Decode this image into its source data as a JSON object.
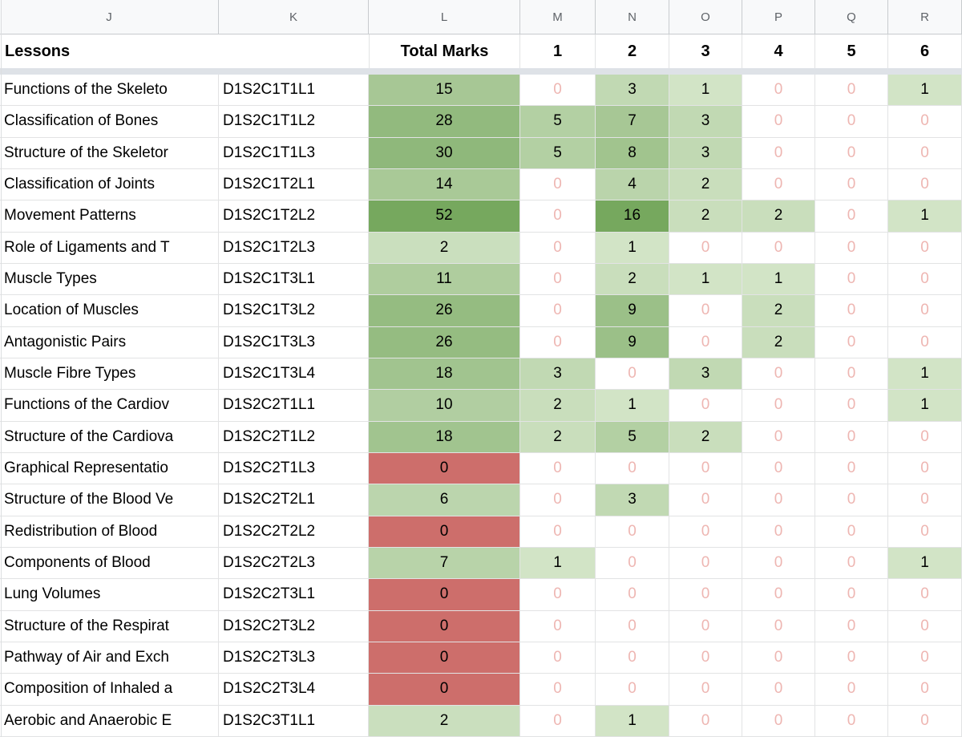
{
  "sheet": {
    "column_letters": [
      "J",
      "K",
      "L",
      "M",
      "N",
      "O",
      "P",
      "Q",
      "R"
    ],
    "header": {
      "lessons_label": "Lessons",
      "total_marks_label": "Total Marks",
      "mark_columns": [
        "1",
        "2",
        "3",
        "4",
        "5",
        "6"
      ]
    },
    "colors": {
      "green_dark": "#76a85e",
      "green_light": "#dfecd5",
      "red_zero_bg": "#cd6e6b",
      "zero_text": "#eeb6b2",
      "grid_line": "#e2e3e4",
      "letters_bg": "#f8f9fa",
      "letters_text": "#5f6368",
      "letters_border": "#c8cbce",
      "divider": "#dee2e7",
      "cell_text": "#000000"
    },
    "rows": [
      {
        "lesson": "Functions of the Skeleto",
        "code": "D1S2C1T1L1",
        "total": 15,
        "marks": [
          0,
          3,
          1,
          0,
          0,
          1
        ]
      },
      {
        "lesson": "Classification of Bones",
        "code": "D1S2C1T1L2",
        "total": 28,
        "marks": [
          5,
          7,
          3,
          0,
          0,
          0
        ]
      },
      {
        "lesson": "Structure of the Skeletor",
        "code": "D1S2C1T1L3",
        "total": 30,
        "marks": [
          5,
          8,
          3,
          0,
          0,
          0
        ]
      },
      {
        "lesson": "Classification of Joints",
        "code": "D1S2C1T2L1",
        "total": 14,
        "marks": [
          0,
          4,
          2,
          0,
          0,
          0
        ]
      },
      {
        "lesson": "Movement Patterns",
        "code": "D1S2C1T2L2",
        "total": 52,
        "marks": [
          0,
          16,
          2,
          2,
          0,
          1
        ]
      },
      {
        "lesson": "Role of Ligaments and T",
        "code": "D1S2C1T2L3",
        "total": 2,
        "marks": [
          0,
          1,
          0,
          0,
          0,
          0
        ]
      },
      {
        "lesson": "Muscle Types",
        "code": "D1S2C1T3L1",
        "total": 11,
        "marks": [
          0,
          2,
          1,
          1,
          0,
          0
        ]
      },
      {
        "lesson": "Location of Muscles",
        "code": "D1S2C1T3L2",
        "total": 26,
        "marks": [
          0,
          9,
          0,
          2,
          0,
          0
        ]
      },
      {
        "lesson": "Antagonistic Pairs",
        "code": "D1S2C1T3L3",
        "total": 26,
        "marks": [
          0,
          9,
          0,
          2,
          0,
          0
        ]
      },
      {
        "lesson": "Muscle Fibre Types",
        "code": "D1S2C1T3L4",
        "total": 18,
        "marks": [
          3,
          0,
          3,
          0,
          0,
          1
        ]
      },
      {
        "lesson": "Functions of the Cardiov",
        "code": "D1S2C2T1L1",
        "total": 10,
        "marks": [
          2,
          1,
          0,
          0,
          0,
          1
        ]
      },
      {
        "lesson": "Structure of the Cardiova",
        "code": "D1S2C2T1L2",
        "total": 18,
        "marks": [
          2,
          5,
          2,
          0,
          0,
          0
        ]
      },
      {
        "lesson": "Graphical Representatio",
        "code": "D1S2C2T1L3",
        "total": 0,
        "marks": [
          0,
          0,
          0,
          0,
          0,
          0
        ]
      },
      {
        "lesson": "Structure of the Blood Ve",
        "code": "D1S2C2T2L1",
        "total": 6,
        "marks": [
          0,
          3,
          0,
          0,
          0,
          0
        ]
      },
      {
        "lesson": "Redistribution of Blood",
        "code": "D1S2C2T2L2",
        "total": 0,
        "marks": [
          0,
          0,
          0,
          0,
          0,
          0
        ]
      },
      {
        "lesson": "Components of Blood",
        "code": "D1S2C2T2L3",
        "total": 7,
        "marks": [
          1,
          0,
          0,
          0,
          0,
          1
        ]
      },
      {
        "lesson": "Lung Volumes",
        "code": "D1S2C2T3L1",
        "total": 0,
        "marks": [
          0,
          0,
          0,
          0,
          0,
          0
        ]
      },
      {
        "lesson": "Structure of the Respirat",
        "code": "D1S2C2T3L2",
        "total": 0,
        "marks": [
          0,
          0,
          0,
          0,
          0,
          0
        ]
      },
      {
        "lesson": "Pathway of Air and Exch",
        "code": "D1S2C2T3L3",
        "total": 0,
        "marks": [
          0,
          0,
          0,
          0,
          0,
          0
        ]
      },
      {
        "lesson": "Composition of Inhaled a",
        "code": "D1S2C2T3L4",
        "total": 0,
        "marks": [
          0,
          0,
          0,
          0,
          0,
          0
        ]
      },
      {
        "lesson": "Aerobic and Anaerobic E",
        "code": "D1S2C3T1L1",
        "total": 2,
        "marks": [
          0,
          1,
          0,
          0,
          0,
          0
        ]
      }
    ]
  }
}
